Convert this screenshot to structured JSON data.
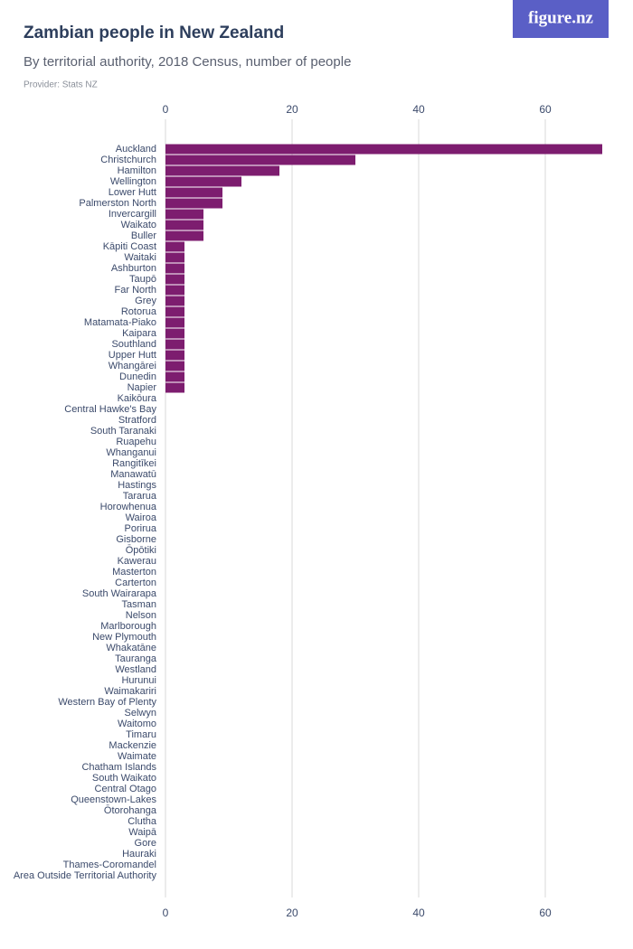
{
  "chart_data": {
    "type": "bar",
    "orientation": "horizontal",
    "title": "Zambian people in New Zealand",
    "subtitle": "By territorial authority, 2018 Census, number of people",
    "provider": "Provider: Stats NZ",
    "logo": "figure.nz",
    "color": "#7d1d6f",
    "grid": true,
    "categories": [
      "Auckland",
      "Christchurch",
      "Hamilton",
      "Wellington",
      "Lower Hutt",
      "Palmerston North",
      "Invercargill",
      "Waikato",
      "Buller",
      "Kāpiti Coast",
      "Waitaki",
      "Ashburton",
      "Taupō",
      "Far North",
      "Grey",
      "Rotorua",
      "Matamata-Piako",
      "Kaipara",
      "Southland",
      "Upper Hutt",
      "Whangārei",
      "Dunedin",
      "Napier",
      "Kaikōura",
      "Central Hawke's Bay",
      "Stratford",
      "South Taranaki",
      "Ruapehu",
      "Whanganui",
      "Rangitīkei",
      "Manawatū",
      "Hastings",
      "Tararua",
      "Horowhenua",
      "Wairoa",
      "Porirua",
      "Gisborne",
      "Ōpōtiki",
      "Kawerau",
      "Masterton",
      "Carterton",
      "South Wairarapa",
      "Tasman",
      "Nelson",
      "Marlborough",
      "New Plymouth",
      "Whakatāne",
      "Tauranga",
      "Westland",
      "Hurunui",
      "Waimakariri",
      "Western Bay of Plenty",
      "Selwyn",
      "Waitomo",
      "Timaru",
      "Mackenzie",
      "Waimate",
      "Chatham Islands",
      "South Waikato",
      "Central Otago",
      "Queenstown-Lakes",
      "Ōtorohanga",
      "Clutha",
      "Waipā",
      "Gore",
      "Hauraki",
      "Thames-Coromandel",
      "Area Outside Territorial Authority"
    ],
    "values": [
      69,
      30,
      18,
      12,
      9,
      9,
      6,
      6,
      6,
      3,
      3,
      3,
      3,
      3,
      3,
      3,
      3,
      3,
      3,
      3,
      3,
      3,
      3,
      0,
      0,
      0,
      0,
      0,
      0,
      0,
      0,
      0,
      0,
      0,
      0,
      0,
      0,
      0,
      0,
      0,
      0,
      0,
      0,
      0,
      0,
      0,
      0,
      0,
      0,
      0,
      0,
      0,
      0,
      0,
      0,
      0,
      0,
      0,
      0,
      0,
      0,
      0,
      0,
      0,
      0,
      0,
      0,
      0
    ],
    "xlim": [
      0,
      70
    ],
    "xticks": [
      0,
      20,
      40,
      60
    ]
  }
}
